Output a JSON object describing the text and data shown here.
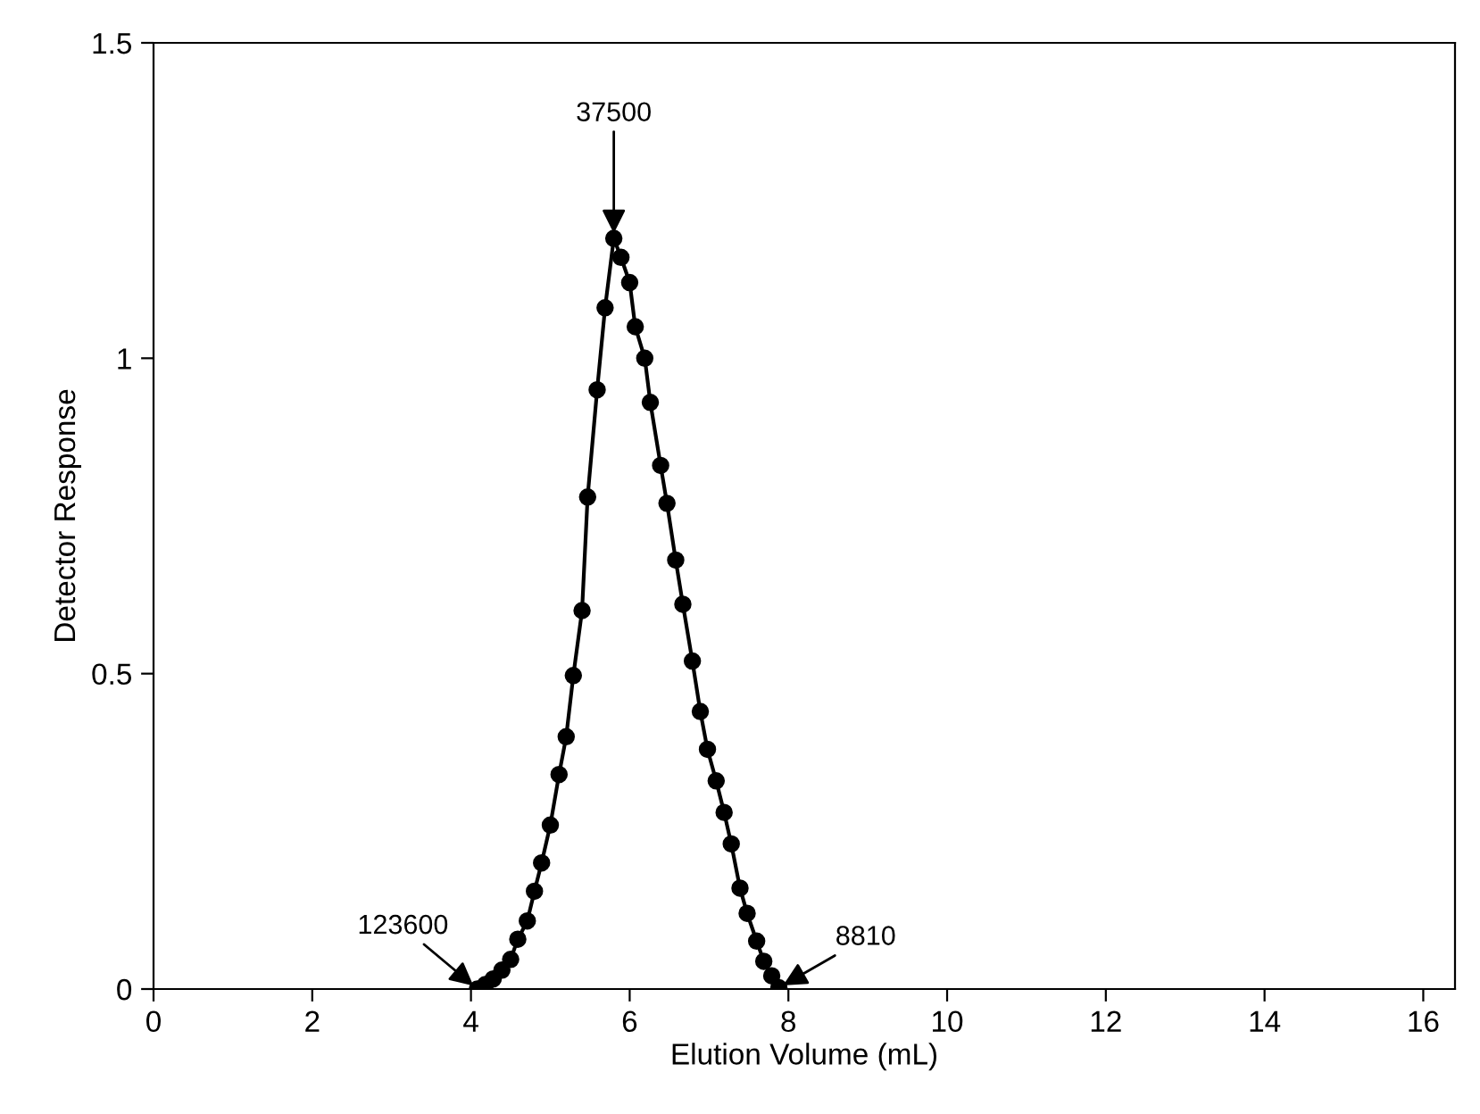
{
  "chart_data": {
    "type": "line",
    "xlabel": "Elution Volume (mL)",
    "ylabel": "Detector Response",
    "xlim": [
      0,
      16.4
    ],
    "ylim": [
      0,
      1.5
    ],
    "xticks": [
      0,
      2,
      4,
      6,
      8,
      10,
      12,
      14,
      16
    ],
    "yticks": [
      0,
      0.5,
      1,
      1.5
    ],
    "grid": false,
    "legend": false,
    "marker": "circle",
    "line_style": "solid",
    "series": [
      {
        "color": "#000000",
        "x": [
          4.08,
          4.18,
          4.28,
          4.39,
          4.5,
          4.59,
          4.71,
          4.8,
          4.89,
          5.0,
          5.11,
          5.2,
          5.29,
          5.4,
          5.47,
          5.59,
          5.69,
          5.8,
          5.89,
          6.0,
          6.07,
          6.19,
          6.26,
          6.39,
          6.47,
          6.58,
          6.67,
          6.79,
          6.89,
          6.98,
          7.09,
          7.19,
          7.28,
          7.39,
          7.48,
          7.6,
          7.69,
          7.79,
          7.88
        ],
        "values": [
          0,
          0.007,
          0.016,
          0.03,
          0.047,
          0.079,
          0.108,
          0.155,
          0.2,
          0.26,
          0.34,
          0.4,
          0.497,
          0.6,
          0.78,
          0.95,
          1.08,
          1.19,
          1.16,
          1.12,
          1.05,
          1.0,
          0.93,
          0.83,
          0.77,
          0.68,
          0.61,
          0.52,
          0.44,
          0.38,
          0.33,
          0.28,
          0.23,
          0.16,
          0.12,
          0.076,
          0.044,
          0.021,
          0.002
        ]
      }
    ],
    "annotations": [
      {
        "text": "37500",
        "x": 5.8,
        "y": 1.19
      },
      {
        "text": "123600",
        "x": 4.08,
        "y": 0
      },
      {
        "text": "8810",
        "x": 7.88,
        "y": 0.002
      }
    ]
  }
}
